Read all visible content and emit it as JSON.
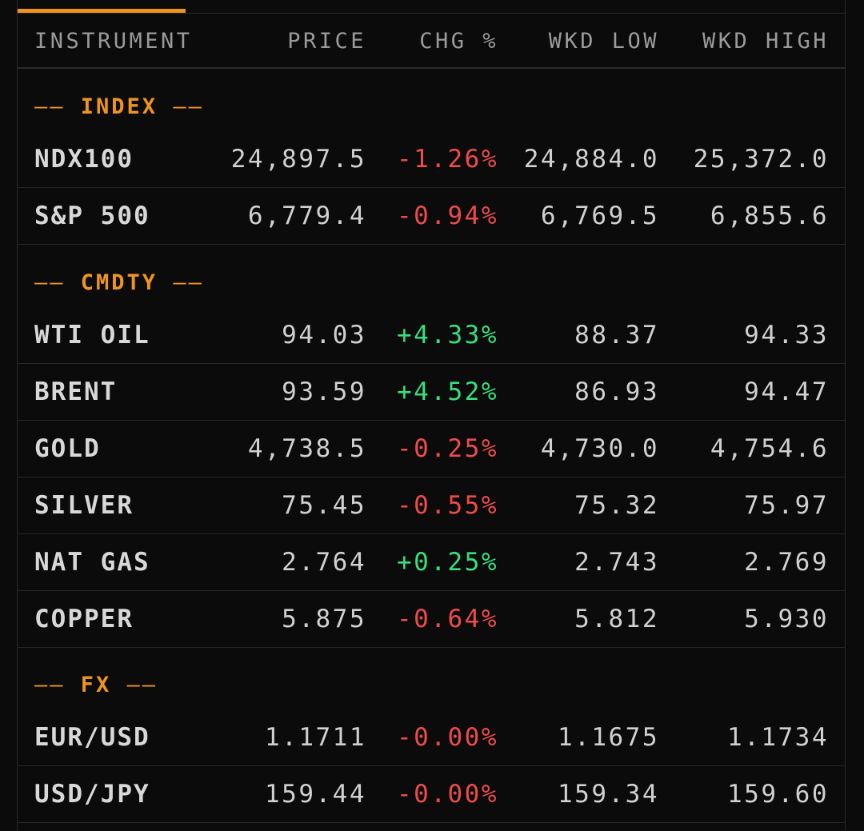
{
  "header": {
    "instrument": "INSTRUMENT",
    "price": "PRICE",
    "chg": "CHG %",
    "low": "WKD LOW",
    "high": "WKD HIGH"
  },
  "sections": [
    {
      "label": "INDEX",
      "rows": [
        {
          "name": "NDX100",
          "price": "24,897.5",
          "chg": "-1.26%",
          "low": "24,884.0",
          "high": "25,372.0",
          "dir": "neg"
        },
        {
          "name": "S&P 500",
          "price": "6,779.4",
          "chg": "-0.94%",
          "low": "6,769.5",
          "high": "6,855.6",
          "dir": "neg"
        }
      ]
    },
    {
      "label": "CMDTY",
      "rows": [
        {
          "name": "WTI OIL",
          "price": "94.03",
          "chg": "+4.33%",
          "low": "88.37",
          "high": "94.33",
          "dir": "pos"
        },
        {
          "name": "BRENT",
          "price": "93.59",
          "chg": "+4.52%",
          "low": "86.93",
          "high": "94.47",
          "dir": "pos"
        },
        {
          "name": "GOLD",
          "price": "4,738.5",
          "chg": "-0.25%",
          "low": "4,730.0",
          "high": "4,754.6",
          "dir": "neg"
        },
        {
          "name": "SILVER",
          "price": "75.45",
          "chg": "-0.55%",
          "low": "75.32",
          "high": "75.97",
          "dir": "neg"
        },
        {
          "name": "NAT GAS",
          "price": "2.764",
          "chg": "+0.25%",
          "low": "2.743",
          "high": "2.769",
          "dir": "pos"
        },
        {
          "name": "COPPER",
          "price": "5.875",
          "chg": "-0.64%",
          "low": "5.812",
          "high": "5.930",
          "dir": "neg"
        }
      ]
    },
    {
      "label": "FX",
      "rows": [
        {
          "name": "EUR/USD",
          "price": "1.1711",
          "chg": "-0.00%",
          "low": "1.1675",
          "high": "1.1734",
          "dir": "neg"
        },
        {
          "name": "USD/JPY",
          "price": "159.44",
          "chg": "-0.00%",
          "low": "159.34",
          "high": "159.60",
          "dir": "neg"
        }
      ]
    }
  ],
  "section_dash": "——",
  "colors": {
    "accent": "#f0951c",
    "negative": "#ef4a4a",
    "positive": "#34e07c",
    "background": "#0b0b0b"
  }
}
